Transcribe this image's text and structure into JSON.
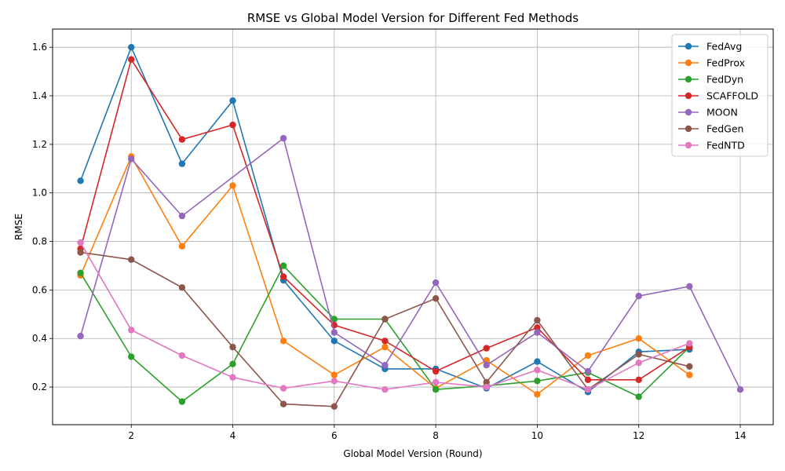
{
  "chart_data": {
    "type": "line",
    "title": "RMSE vs Global Model Version for Different Fed Methods",
    "xlabel": "Global Model Version (Round)",
    "ylabel": "RMSE",
    "xlim": [
      0.45,
      14.65
    ],
    "ylim": [
      0.045,
      1.675
    ],
    "xticks": [
      2,
      4,
      6,
      8,
      10,
      12,
      14
    ],
    "yticks": [
      0.2,
      0.4,
      0.6,
      0.8,
      1.0,
      1.2,
      1.4,
      1.6
    ],
    "ytick_labels": [
      "0.2",
      "0.4",
      "0.6",
      "0.8",
      "1.0",
      "1.2",
      "1.4",
      "1.6"
    ],
    "grid": true,
    "legend_position": "top-right",
    "series": [
      {
        "name": "FedAvg",
        "color": "#1f77b4",
        "x": [
          1,
          2,
          3,
          4,
          5,
          6,
          7,
          8,
          9,
          10,
          11,
          12,
          13
        ],
        "y": [
          1.05,
          1.6,
          1.12,
          1.38,
          0.64,
          0.39,
          0.275,
          0.275,
          0.195,
          0.305,
          0.18,
          0.345,
          0.355
        ]
      },
      {
        "name": "FedProx",
        "color": "#ff7f0e",
        "x": [
          1,
          2,
          3,
          4,
          5,
          6,
          7,
          8,
          9,
          10,
          11,
          12,
          13
        ],
        "y": [
          0.66,
          1.15,
          0.78,
          1.03,
          0.39,
          0.25,
          0.365,
          0.195,
          0.31,
          0.17,
          0.33,
          0.4,
          0.25
        ]
      },
      {
        "name": "FedDyn",
        "color": "#2ca02c",
        "x": [
          1,
          2,
          3,
          4,
          5,
          6,
          7,
          8,
          9,
          10,
          11,
          12,
          13
        ],
        "y": [
          0.67,
          0.325,
          0.14,
          0.295,
          0.7,
          0.48,
          0.48,
          0.19,
          0.205,
          0.225,
          0.26,
          0.16,
          0.365
        ]
      },
      {
        "name": "SCAFFOLD",
        "color": "#d62728",
        "x": [
          1,
          2,
          3,
          4,
          5,
          6,
          7,
          8,
          9,
          10,
          11,
          12,
          13
        ],
        "y": [
          0.77,
          1.55,
          1.22,
          1.28,
          0.655,
          0.455,
          0.39,
          0.265,
          0.36,
          0.445,
          0.23,
          0.23,
          0.365
        ]
      },
      {
        "name": "MOON",
        "color": "#9467bd",
        "x": [
          1,
          2,
          3,
          5,
          6,
          7,
          8,
          9,
          10,
          11,
          12,
          13,
          14
        ],
        "y": [
          0.41,
          1.14,
          0.905,
          1.225,
          0.425,
          0.29,
          0.63,
          0.29,
          0.425,
          0.265,
          0.575,
          0.615,
          0.19
        ]
      },
      {
        "name": "FedGen",
        "color": "#8c564b",
        "x": [
          1,
          2,
          3,
          4,
          5,
          6,
          7,
          8,
          9,
          10,
          11,
          12,
          13
        ],
        "y": [
          0.755,
          0.725,
          0.61,
          0.365,
          0.13,
          0.12,
          0.48,
          0.565,
          0.22,
          0.475,
          0.19,
          0.335,
          0.285
        ]
      },
      {
        "name": "FedNTD",
        "color": "#e377c2",
        "x": [
          1,
          2,
          3,
          4,
          5,
          6,
          7,
          8,
          9,
          10,
          11,
          12,
          13
        ],
        "y": [
          0.795,
          0.435,
          0.33,
          0.24,
          0.195,
          0.225,
          0.19,
          0.22,
          0.2,
          0.27,
          0.19,
          0.3,
          0.38
        ]
      }
    ]
  }
}
